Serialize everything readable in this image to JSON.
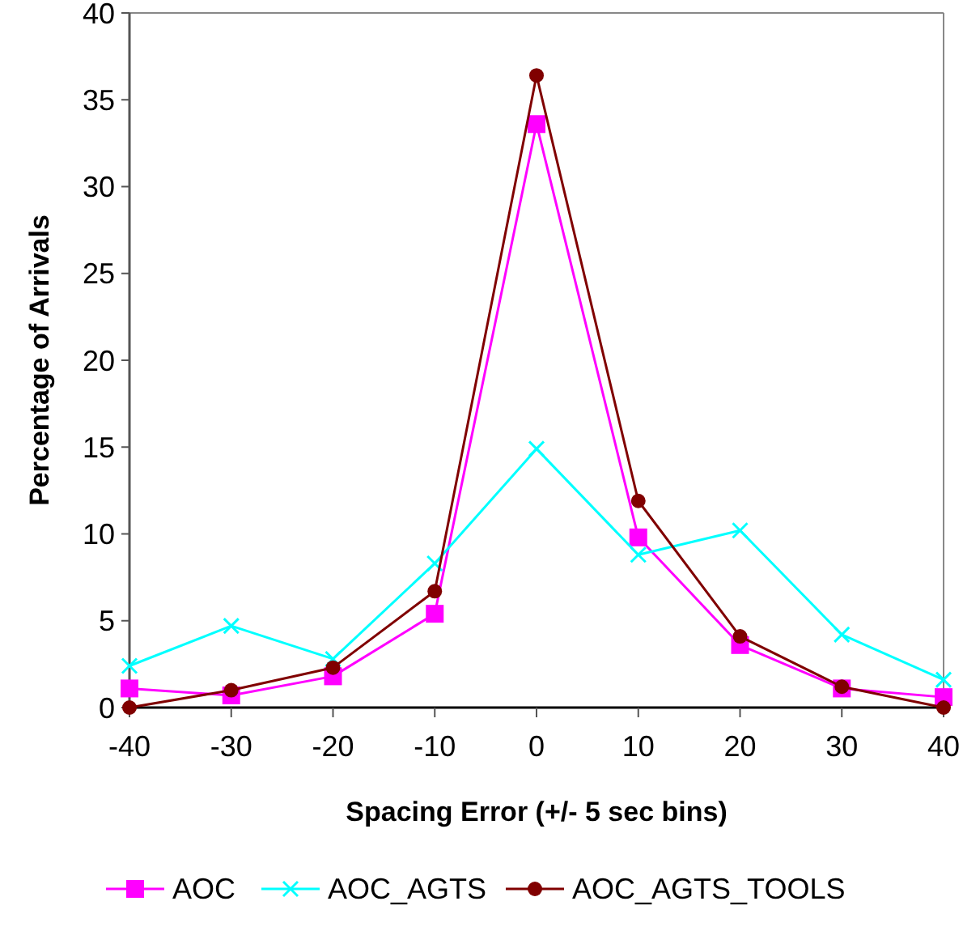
{
  "chart_data": {
    "type": "line",
    "xlabel": "Spacing Error (+/- 5 sec bins)",
    "ylabel": "Percentage of Arrivals",
    "x": [
      -40,
      -30,
      -20,
      -10,
      0,
      10,
      20,
      30,
      40
    ],
    "xlim": [
      -40,
      40
    ],
    "xticks": [
      -40,
      -30,
      -20,
      -10,
      0,
      10,
      20,
      30,
      40
    ],
    "ylim": [
      0,
      40
    ],
    "yticks": [
      0,
      5,
      10,
      15,
      20,
      25,
      30,
      35,
      40
    ],
    "grid": false,
    "legend": "bottom",
    "line_style": "solid",
    "series": [
      {
        "name": "AOC",
        "color": "#ff00ff",
        "marker": "square",
        "values": [
          1.1,
          0.7,
          1.8,
          5.4,
          33.6,
          9.8,
          3.6,
          1.1,
          0.6
        ]
      },
      {
        "name": "AOC_AGTS",
        "color": "#00ffff",
        "marker": "cross",
        "values": [
          2.4,
          4.7,
          2.8,
          8.3,
          14.9,
          8.8,
          10.2,
          4.2,
          1.6
        ]
      },
      {
        "name": "AOC_AGTS_TOOLS",
        "color": "#800000",
        "marker": "circle",
        "values": [
          0,
          1.0,
          2.3,
          6.7,
          36.4,
          11.9,
          4.1,
          1.2,
          0
        ]
      }
    ]
  }
}
